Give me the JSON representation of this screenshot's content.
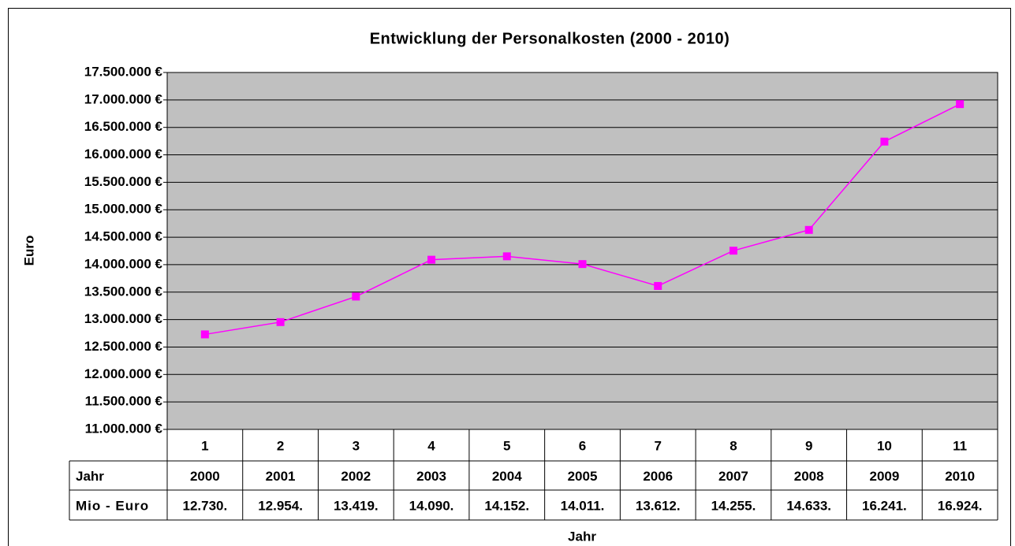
{
  "chart_data": {
    "type": "line",
    "title": "Entwicklung der Personalkosten (2000 - 2010)",
    "y_label": "Euro",
    "x_label": "Jahr",
    "categories": [
      "1",
      "2",
      "3",
      "4",
      "5",
      "6",
      "7",
      "8",
      "9",
      "10",
      "11"
    ],
    "table": {
      "row_headers": [
        "Jahr",
        "Mio - Euro"
      ],
      "years": [
        "2000",
        "2001",
        "2002",
        "2003",
        "2004",
        "2005",
        "2006",
        "2007",
        "2008",
        "2009",
        "2010"
      ]
    },
    "series": [
      {
        "name": "Mio - Euro",
        "color": "#ff00ff",
        "values": [
          12730000,
          12954000,
          13419000,
          14090000,
          14152000,
          14011000,
          13612000,
          14255000,
          14633000,
          16241000,
          16924000
        ],
        "value_labels": [
          "12.730.",
          "12.954.",
          "13.419.",
          "14.090.",
          "14.152.",
          "14.011.",
          "13.612.",
          "14.255.",
          "14.633.",
          "16.241.",
          "16.924."
        ]
      }
    ],
    "ylim": [
      11000000,
      17500000
    ],
    "yticks": [
      {
        "value": 11000000,
        "label": "11.000.000 €"
      },
      {
        "value": 11500000,
        "label": "11.500.000 €"
      },
      {
        "value": 12000000,
        "label": "12.000.000 €"
      },
      {
        "value": 12500000,
        "label": "12.500.000 €"
      },
      {
        "value": 13000000,
        "label": "13.000.000 €"
      },
      {
        "value": 13500000,
        "label": "13.500.000 €"
      },
      {
        "value": 14000000,
        "label": "14.000.000 €"
      },
      {
        "value": 14500000,
        "label": "14.500.000 €"
      },
      {
        "value": 15000000,
        "label": "15.000.000 €"
      },
      {
        "value": 15500000,
        "label": "15.500.000 €"
      },
      {
        "value": 16000000,
        "label": "16.000.000 €"
      },
      {
        "value": 16500000,
        "label": "16.500.000 €"
      },
      {
        "value": 17000000,
        "label": "17.000.000 €"
      },
      {
        "value": 17500000,
        "label": "17.500.000 €"
      }
    ],
    "grid": true,
    "plot_background": "#c0c0c0"
  }
}
